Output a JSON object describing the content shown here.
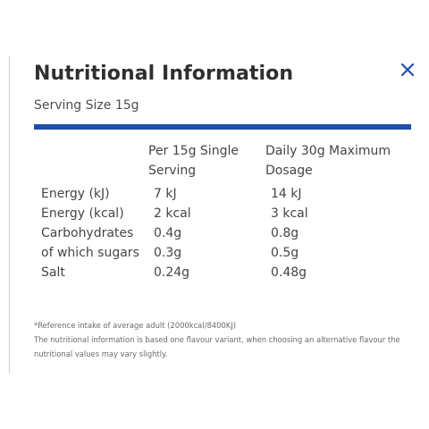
{
  "header": {
    "title": "Nutritional Information",
    "close_icon": "close-icon",
    "serving_size": "Serving Size 15g"
  },
  "colors": {
    "accent": "#1f4fa8",
    "close_icon": "#1f4fa8",
    "text": "#4a4a4a"
  },
  "table": {
    "headers": [
      "",
      "Per 15g Single Serving",
      "Daily 30g Maximum Dosage"
    ],
    "rows": [
      {
        "label": "Energy (kJ)",
        "per_serving": "7 kJ",
        "daily_max": "14 kJ"
      },
      {
        "label": "Energy (kcal)",
        "per_serving": "2 kcal",
        "daily_max": "3 kcal"
      },
      {
        "label": "Carbohydrates",
        "per_serving": "0.4g",
        "daily_max": "0.8g"
      },
      {
        "label": "of which sugars",
        "per_serving": "0.3g",
        "daily_max": "0.5g"
      },
      {
        "label": "Salt",
        "per_serving": "0.24g",
        "daily_max": "0.48g"
      }
    ]
  },
  "footnotes": {
    "reference": "*Reference intake of average adult (2000kcal/8400KJ)",
    "disclaimer": "The nutritional information is based one flavour variant, when choosing an alternative flavour the nutritional values may vary slightly."
  }
}
